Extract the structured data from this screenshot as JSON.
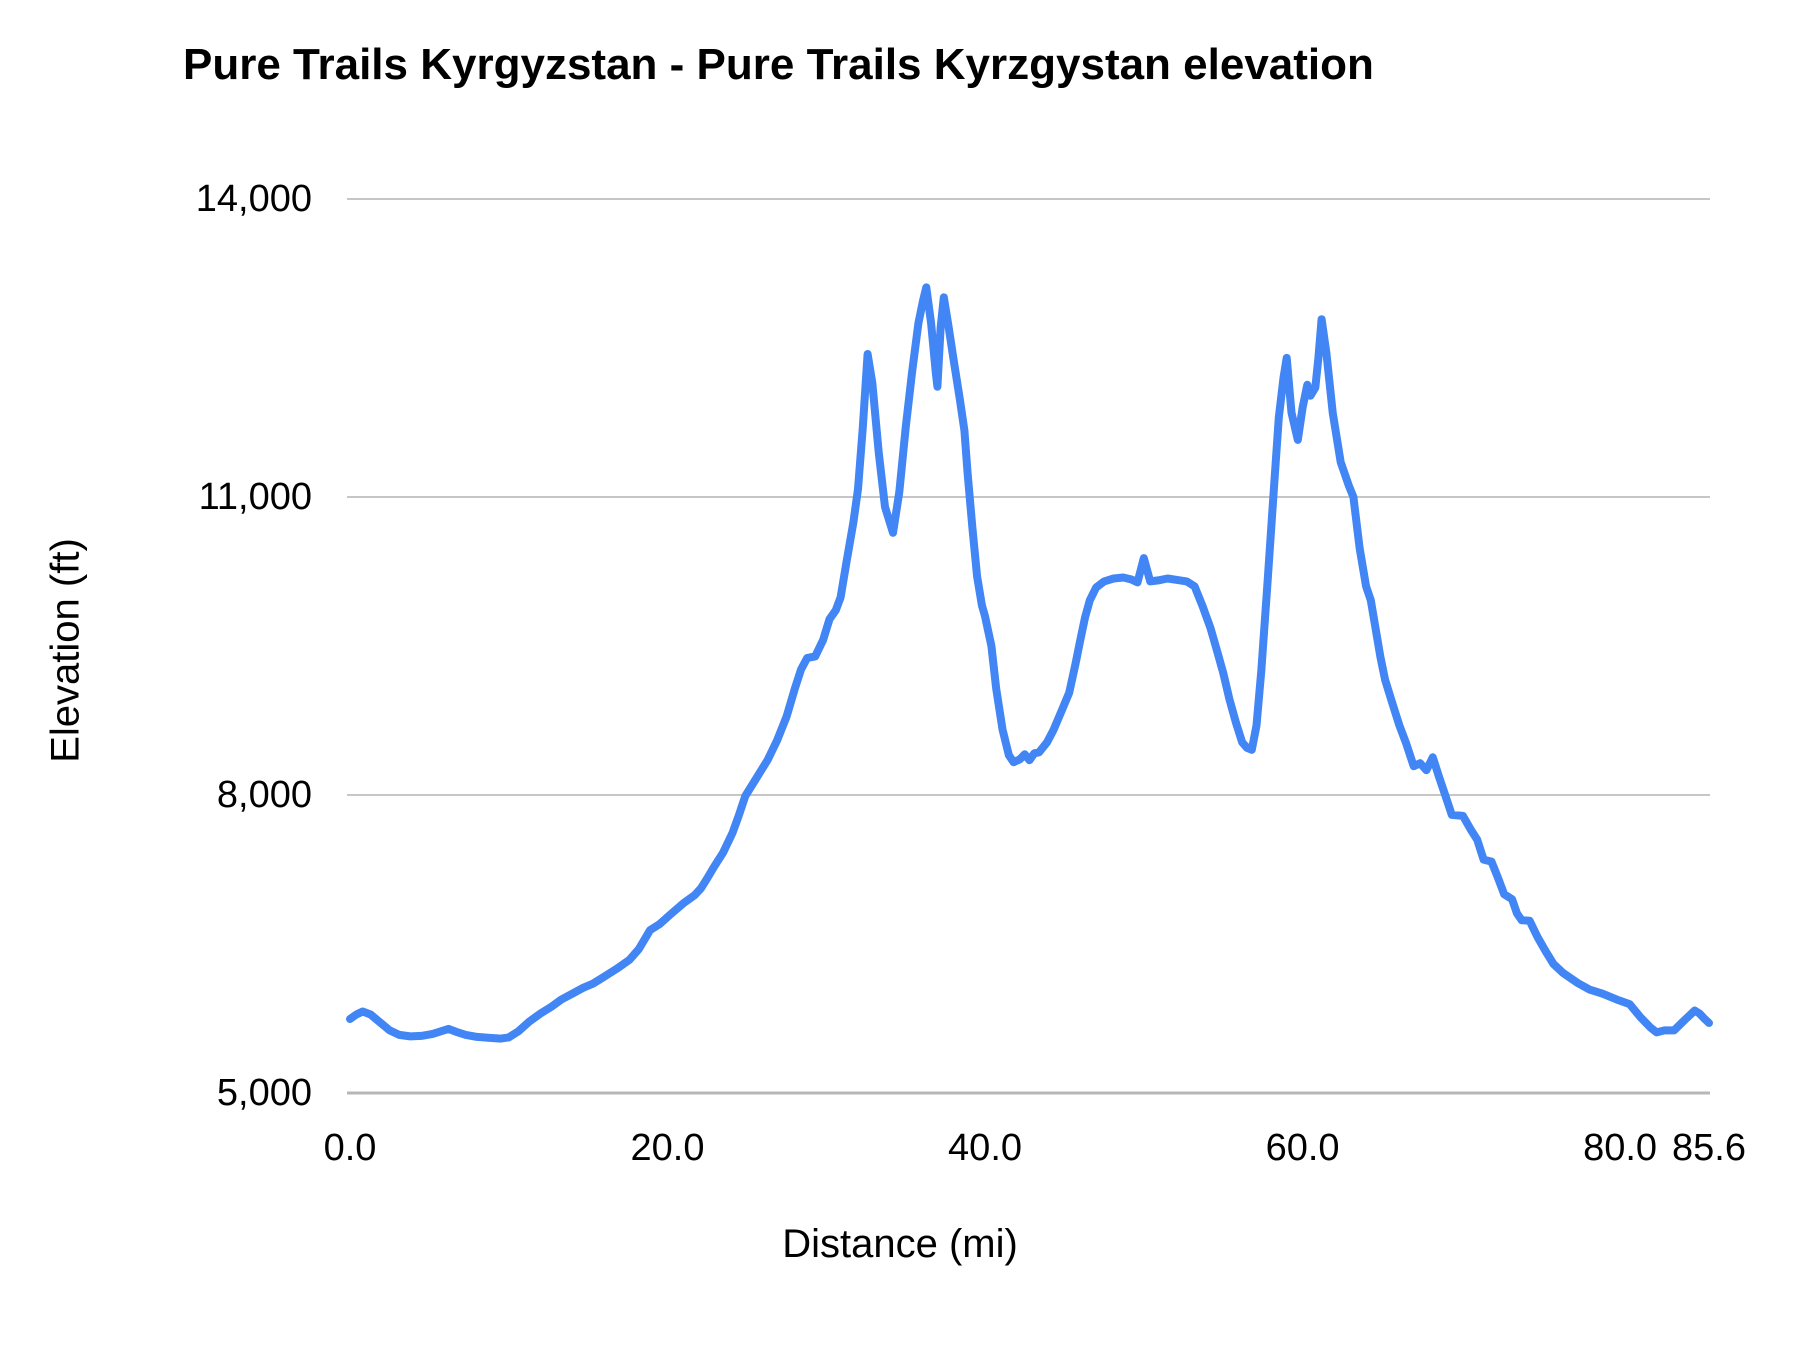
{
  "chart_data": {
    "type": "line",
    "title": "Pure Trails Kyrgyzstan - Pure Trails Kyrzgystan elevation",
    "xlabel": "Distance (mi)",
    "ylabel": "Elevation (ft)",
    "xlim": [
      0,
      85.6
    ],
    "ylim": [
      5000,
      14000
    ],
    "grid": "horizontal",
    "legend": "none",
    "line_color": "#4285f4",
    "gridline_color": "#c6c6c6",
    "baseline_color": "#b7b7b7",
    "x_ticks": [
      {
        "value": 0.0,
        "label": "0.0"
      },
      {
        "value": 20.0,
        "label": "20.0"
      },
      {
        "value": 40.0,
        "label": "40.0"
      },
      {
        "value": 60.0,
        "label": "60.0"
      },
      {
        "value": 80.0,
        "label": "80.0"
      },
      {
        "value": 85.6,
        "label": "85.6"
      }
    ],
    "y_ticks": [
      {
        "value": 5000,
        "label": "5,000"
      },
      {
        "value": 8000,
        "label": "8,000"
      },
      {
        "value": 11000,
        "label": "11,000"
      },
      {
        "value": 14000,
        "label": "14,000"
      }
    ],
    "series": [
      {
        "name": "elevation",
        "points": [
          [
            0.0,
            5745
          ],
          [
            0.4,
            5790
          ],
          [
            0.8,
            5820
          ],
          [
            1.3,
            5790
          ],
          [
            1.9,
            5710
          ],
          [
            2.5,
            5630
          ],
          [
            3.1,
            5585
          ],
          [
            3.8,
            5570
          ],
          [
            4.5,
            5575
          ],
          [
            5.2,
            5595
          ],
          [
            5.8,
            5625
          ],
          [
            6.2,
            5645
          ],
          [
            6.7,
            5615
          ],
          [
            7.3,
            5585
          ],
          [
            8.0,
            5565
          ],
          [
            8.8,
            5555
          ],
          [
            9.5,
            5548
          ],
          [
            10.0,
            5560
          ],
          [
            10.6,
            5620
          ],
          [
            11.3,
            5720
          ],
          [
            12.0,
            5800
          ],
          [
            12.7,
            5870
          ],
          [
            13.3,
            5940
          ],
          [
            14.0,
            6000
          ],
          [
            14.7,
            6060
          ],
          [
            15.3,
            6100
          ],
          [
            16.0,
            6170
          ],
          [
            16.8,
            6250
          ],
          [
            17.6,
            6340
          ],
          [
            18.2,
            6450
          ],
          [
            18.9,
            6640
          ],
          [
            19.5,
            6700
          ],
          [
            20.2,
            6800
          ],
          [
            21.0,
            6910
          ],
          [
            21.7,
            6990
          ],
          [
            22.1,
            7060
          ],
          [
            22.5,
            7160
          ],
          [
            22.9,
            7270
          ],
          [
            23.5,
            7420
          ],
          [
            24.1,
            7620
          ],
          [
            24.5,
            7800
          ],
          [
            24.9,
            7990
          ],
          [
            25.6,
            8170
          ],
          [
            26.3,
            8350
          ],
          [
            26.9,
            8550
          ],
          [
            27.5,
            8790
          ],
          [
            28.0,
            9060
          ],
          [
            28.4,
            9260
          ],
          [
            28.8,
            9380
          ],
          [
            29.3,
            9395
          ],
          [
            29.8,
            9560
          ],
          [
            30.2,
            9770
          ],
          [
            30.6,
            9860
          ],
          [
            30.9,
            9990
          ],
          [
            31.3,
            10370
          ],
          [
            31.7,
            10740
          ],
          [
            32.0,
            11080
          ],
          [
            32.3,
            11700
          ],
          [
            32.6,
            12440
          ],
          [
            32.9,
            12150
          ],
          [
            33.3,
            11450
          ],
          [
            33.7,
            10900
          ],
          [
            34.2,
            10640
          ],
          [
            34.6,
            11050
          ],
          [
            35.0,
            11700
          ],
          [
            35.4,
            12250
          ],
          [
            35.8,
            12750
          ],
          [
            36.1,
            12980
          ],
          [
            36.3,
            13110
          ],
          [
            36.6,
            12750
          ],
          [
            36.9,
            12250
          ],
          [
            37.0,
            12110
          ],
          [
            37.2,
            12700
          ],
          [
            37.4,
            13010
          ],
          [
            37.7,
            12720
          ],
          [
            38.0,
            12400
          ],
          [
            38.4,
            12000
          ],
          [
            38.7,
            11670
          ],
          [
            38.9,
            11240
          ],
          [
            39.2,
            10700
          ],
          [
            39.5,
            10200
          ],
          [
            39.8,
            9910
          ],
          [
            40.0,
            9800
          ],
          [
            40.4,
            9500
          ],
          [
            40.7,
            9070
          ],
          [
            41.1,
            8660
          ],
          [
            41.5,
            8400
          ],
          [
            41.8,
            8330
          ],
          [
            42.2,
            8360
          ],
          [
            42.5,
            8410
          ],
          [
            42.8,
            8350
          ],
          [
            43.1,
            8420
          ],
          [
            43.4,
            8430
          ],
          [
            43.9,
            8530
          ],
          [
            44.3,
            8650
          ],
          [
            44.8,
            8840
          ],
          [
            45.3,
            9030
          ],
          [
            45.7,
            9320
          ],
          [
            46.0,
            9560
          ],
          [
            46.3,
            9790
          ],
          [
            46.6,
            9960
          ],
          [
            47.0,
            10090
          ],
          [
            47.5,
            10150
          ],
          [
            48.1,
            10180
          ],
          [
            48.7,
            10190
          ],
          [
            49.2,
            10170
          ],
          [
            49.6,
            10140
          ],
          [
            50.0,
            10385
          ],
          [
            50.4,
            10150
          ],
          [
            50.9,
            10160
          ],
          [
            51.5,
            10180
          ],
          [
            52.1,
            10165
          ],
          [
            52.7,
            10150
          ],
          [
            53.2,
            10100
          ],
          [
            53.7,
            9900
          ],
          [
            54.2,
            9680
          ],
          [
            54.6,
            9460
          ],
          [
            55.0,
            9230
          ],
          [
            55.4,
            8960
          ],
          [
            55.8,
            8730
          ],
          [
            56.2,
            8530
          ],
          [
            56.5,
            8475
          ],
          [
            56.8,
            8455
          ],
          [
            57.1,
            8700
          ],
          [
            57.4,
            9250
          ],
          [
            57.8,
            10150
          ],
          [
            58.2,
            11100
          ],
          [
            58.5,
            11800
          ],
          [
            58.8,
            12200
          ],
          [
            59.0,
            12400
          ],
          [
            59.3,
            11850
          ],
          [
            59.7,
            11575
          ],
          [
            60.0,
            11900
          ],
          [
            60.3,
            12130
          ],
          [
            60.5,
            12020
          ],
          [
            60.8,
            12100
          ],
          [
            61.0,
            12400
          ],
          [
            61.2,
            12790
          ],
          [
            61.5,
            12450
          ],
          [
            61.9,
            11850
          ],
          [
            62.4,
            11350
          ],
          [
            62.9,
            11120
          ],
          [
            63.2,
            11000
          ],
          [
            63.6,
            10480
          ],
          [
            64.0,
            10100
          ],
          [
            64.3,
            9960
          ],
          [
            64.9,
            9390
          ],
          [
            65.2,
            9160
          ],
          [
            65.6,
            8950
          ],
          [
            66.1,
            8700
          ],
          [
            66.5,
            8530
          ],
          [
            67.0,
            8290
          ],
          [
            67.4,
            8320
          ],
          [
            67.8,
            8250
          ],
          [
            68.2,
            8380
          ],
          [
            68.6,
            8180
          ],
          [
            69.0,
            7990
          ],
          [
            69.4,
            7800
          ],
          [
            70.1,
            7790
          ],
          [
            70.6,
            7650
          ],
          [
            71.0,
            7550
          ],
          [
            71.4,
            7350
          ],
          [
            71.9,
            7330
          ],
          [
            72.3,
            7170
          ],
          [
            72.7,
            7000
          ],
          [
            73.2,
            6950
          ],
          [
            73.5,
            6810
          ],
          [
            73.8,
            6740
          ],
          [
            74.3,
            6735
          ],
          [
            74.8,
            6570
          ],
          [
            75.3,
            6430
          ],
          [
            75.8,
            6300
          ],
          [
            76.4,
            6210
          ],
          [
            77.3,
            6110
          ],
          [
            78.1,
            6040
          ],
          [
            78.9,
            6000
          ],
          [
            79.8,
            5940
          ],
          [
            80.6,
            5895
          ],
          [
            81.3,
            5760
          ],
          [
            81.9,
            5660
          ],
          [
            82.3,
            5610
          ],
          [
            82.8,
            5630
          ],
          [
            83.4,
            5630
          ],
          [
            84.1,
            5740
          ],
          [
            84.7,
            5830
          ],
          [
            85.0,
            5800
          ],
          [
            85.3,
            5750
          ],
          [
            85.6,
            5705
          ]
        ]
      }
    ]
  }
}
